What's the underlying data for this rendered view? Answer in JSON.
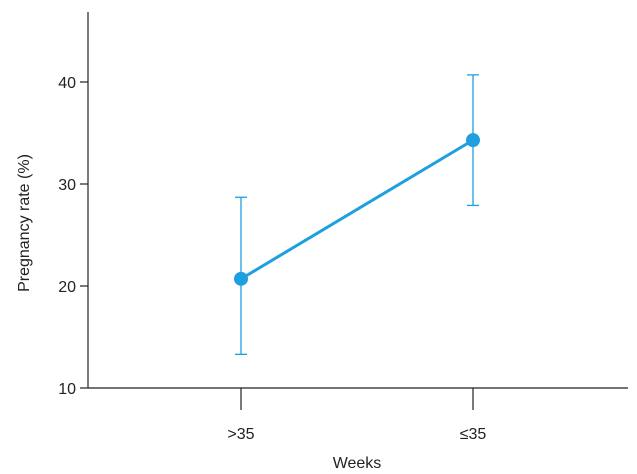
{
  "chart_data": {
    "type": "line",
    "title": "",
    "xlabel": "Weeks",
    "ylabel": "Pregnancy rate (%)",
    "categories": [
      ">35",
      "≤35"
    ],
    "ylim": [
      10,
      45
    ],
    "yticks": [
      10,
      20,
      30,
      40
    ],
    "grid": false,
    "legend": "none",
    "series": [
      {
        "color": "#1ea0e0",
        "values": [
          20.7,
          34.3
        ],
        "error_low": [
          13.3,
          27.9
        ],
        "error_high": [
          28.7,
          40.7
        ]
      }
    ]
  }
}
